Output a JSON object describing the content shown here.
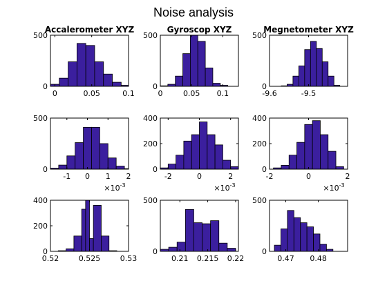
{
  "title": "Noise analysis",
  "chart_data": [
    {
      "type": "bar",
      "title": "Accalerometer XYZ",
      "multiplier": "",
      "xlim": [
        -0.006,
        0.1
      ],
      "ylim": [
        0,
        500
      ],
      "bins": [
        [
          -0.006,
          0.006,
          20
        ],
        [
          0.006,
          0.018,
          80
        ],
        [
          0.018,
          0.03,
          240
        ],
        [
          0.03,
          0.042,
          420
        ],
        [
          0.042,
          0.054,
          400
        ],
        [
          0.054,
          0.066,
          240
        ],
        [
          0.066,
          0.078,
          120
        ],
        [
          0.078,
          0.09,
          40
        ],
        [
          0.09,
          0.102,
          10
        ]
      ],
      "xticks": [
        0,
        0.05,
        0.1
      ],
      "xtick_labels": [
        "0",
        "0.05",
        "0.1"
      ],
      "yticks": [
        0,
        500
      ],
      "ytick_labels": [
        "0",
        "500"
      ]
    },
    {
      "type": "bar",
      "title": "Gyroscop XYZ",
      "multiplier": "",
      "xlim": [
        0,
        0.125
      ],
      "ylim": [
        0,
        500
      ],
      "bins": [
        [
          0.0,
          0.012,
          5
        ],
        [
          0.012,
          0.024,
          20
        ],
        [
          0.024,
          0.036,
          100
        ],
        [
          0.036,
          0.048,
          320
        ],
        [
          0.048,
          0.06,
          500
        ],
        [
          0.06,
          0.072,
          440
        ],
        [
          0.072,
          0.084,
          180
        ],
        [
          0.084,
          0.096,
          30
        ],
        [
          0.096,
          0.108,
          10
        ]
      ],
      "xticks": [
        0,
        0.05,
        0.1
      ],
      "xtick_labels": [
        "0",
        "0.05",
        "0.1"
      ],
      "yticks": [
        0,
        500
      ],
      "ytick_labels": [
        "0",
        "500"
      ]
    },
    {
      "type": "bar",
      "title": "Megnetometer XYZ",
      "multiplier": "",
      "xlim": [
        -9.6,
        -9.4
      ],
      "ylim": [
        0,
        500
      ],
      "bins": [
        [
          -9.57,
          -9.555,
          5
        ],
        [
          -9.555,
          -9.54,
          20
        ],
        [
          -9.54,
          -9.525,
          100
        ],
        [
          -9.525,
          -9.51,
          200
        ],
        [
          -9.51,
          -9.495,
          360
        ],
        [
          -9.495,
          -9.48,
          440
        ],
        [
          -9.48,
          -9.465,
          370
        ],
        [
          -9.465,
          -9.45,
          240
        ],
        [
          -9.45,
          -9.435,
          100
        ],
        [
          -9.435,
          -9.42,
          10
        ]
      ],
      "xticks": [
        -9.6,
        -9.5
      ],
      "xtick_labels": [
        "-9.6",
        "-9.5"
      ],
      "yticks": [
        0,
        500
      ],
      "ytick_labels": [
        "0",
        "500"
      ]
    },
    {
      "type": "bar",
      "title": "",
      "multiplier": "×10",
      "multiplier_exp": "-3",
      "xlim": [
        -0.0018,
        0.002
      ],
      "ylim": [
        0,
        500
      ],
      "bins": [
        [
          -0.0018,
          -0.0014,
          10
        ],
        [
          -0.0014,
          -0.001,
          40
        ],
        [
          -0.001,
          -0.0006,
          130
        ],
        [
          -0.0006,
          -0.0002,
          260
        ],
        [
          -0.0002,
          0.0002,
          410
        ],
        [
          0.0002,
          0.0006,
          410
        ],
        [
          0.0006,
          0.001,
          250
        ],
        [
          0.001,
          0.0014,
          110
        ],
        [
          0.0014,
          0.0018,
          30
        ],
        [
          0.0018,
          0.0022,
          5
        ]
      ],
      "xticks": [
        -0.001,
        0,
        0.001,
        0.002
      ],
      "xtick_labels": [
        "-1",
        "0",
        "1",
        "2"
      ],
      "yticks": [
        0,
        500
      ],
      "ytick_labels": [
        "0",
        "500"
      ]
    },
    {
      "type": "bar",
      "title": "",
      "multiplier": "×10",
      "multiplier_exp": "-3",
      "xlim": [
        -0.0025,
        0.0025
      ],
      "ylim": [
        0,
        400
      ],
      "bins": [
        [
          -0.0025,
          -0.002,
          10
        ],
        [
          -0.002,
          -0.0015,
          40
        ],
        [
          -0.0015,
          -0.001,
          110
        ],
        [
          -0.001,
          -0.0005,
          220
        ],
        [
          -0.0005,
          0.0,
          270
        ],
        [
          0.0,
          0.0005,
          370
        ],
        [
          0.0005,
          0.001,
          270
        ],
        [
          0.001,
          0.0015,
          190
        ],
        [
          0.0015,
          0.002,
          70
        ],
        [
          0.002,
          0.0025,
          20
        ]
      ],
      "xticks": [
        -0.002,
        0,
        0.002
      ],
      "xtick_labels": [
        "-2",
        "0",
        "2"
      ],
      "yticks": [
        0,
        200,
        400
      ],
      "ytick_labels": [
        "0",
        "200",
        "400"
      ]
    },
    {
      "type": "bar",
      "title": "",
      "multiplier": "×10",
      "multiplier_exp": "-3",
      "xlim": [
        -0.002,
        0.002
      ],
      "ylim": [
        0,
        400
      ],
      "bins": [
        [
          -0.0018,
          -0.0014,
          10
        ],
        [
          -0.0014,
          -0.001,
          30
        ],
        [
          -0.001,
          -0.0006,
          110
        ],
        [
          -0.0006,
          -0.0002,
          210
        ],
        [
          -0.0002,
          0.0002,
          350
        ],
        [
          0.0002,
          0.0006,
          380
        ],
        [
          0.0006,
          0.001,
          270
        ],
        [
          0.001,
          0.0014,
          140
        ],
        [
          0.0014,
          0.0018,
          20
        ]
      ],
      "xticks": [
        -0.002,
        0,
        0.002
      ],
      "xtick_labels": [
        "-2",
        "0",
        "2"
      ],
      "yticks": [
        0,
        200,
        400
      ],
      "ytick_labels": [
        "0",
        "200",
        "400"
      ]
    },
    {
      "type": "bar",
      "title": "",
      "multiplier": "",
      "xlim": [
        0.52,
        0.53
      ],
      "ylim": [
        0,
        400
      ],
      "bins": [
        [
          0.521,
          0.522,
          5
        ],
        [
          0.522,
          0.523,
          20
        ],
        [
          0.523,
          0.524,
          120
        ],
        [
          0.524,
          0.5245,
          330
        ],
        [
          0.5245,
          0.525,
          400
        ],
        [
          0.525,
          0.5255,
          100
        ],
        [
          0.5255,
          0.5265,
          360
        ],
        [
          0.5265,
          0.5275,
          120
        ],
        [
          0.5275,
          0.5285,
          5
        ]
      ],
      "xticks": [
        0.52,
        0.525,
        0.53
      ],
      "xtick_labels": [
        "0.52",
        "0.525",
        "0.53"
      ],
      "yticks": [
        0,
        200,
        400
      ],
      "ytick_labels": [
        "0",
        "200",
        "400"
      ]
    },
    {
      "type": "bar",
      "title": "",
      "multiplier": "",
      "xlim": [
        0.2065,
        0.2205
      ],
      "ylim": [
        0,
        500
      ],
      "bins": [
        [
          0.2065,
          0.208,
          20
        ],
        [
          0.208,
          0.2095,
          40
        ],
        [
          0.2095,
          0.211,
          90
        ],
        [
          0.211,
          0.2125,
          410
        ],
        [
          0.2125,
          0.214,
          280
        ],
        [
          0.214,
          0.2155,
          270
        ],
        [
          0.2155,
          0.217,
          300
        ],
        [
          0.217,
          0.2185,
          80
        ],
        [
          0.2185,
          0.22,
          30
        ]
      ],
      "xticks": [
        0.21,
        0.215,
        0.22
      ],
      "xtick_labels": [
        "0.21",
        "0.215",
        "0.22"
      ],
      "yticks": [
        0,
        500
      ],
      "ytick_labels": [
        "0",
        "500"
      ]
    },
    {
      "type": "bar",
      "title": "",
      "multiplier": "",
      "xlim": [
        0.465,
        0.489
      ],
      "ylim": [
        0,
        500
      ],
      "bins": [
        [
          0.4665,
          0.4685,
          60
        ],
        [
          0.4685,
          0.4705,
          220
        ],
        [
          0.4705,
          0.4725,
          400
        ],
        [
          0.4725,
          0.4745,
          330
        ],
        [
          0.4745,
          0.4765,
          280
        ],
        [
          0.4765,
          0.4785,
          240
        ],
        [
          0.4785,
          0.4805,
          170
        ],
        [
          0.4805,
          0.4825,
          70
        ],
        [
          0.4825,
          0.4845,
          20
        ]
      ],
      "xticks": [
        0.47,
        0.48
      ],
      "xtick_labels": [
        "0.47",
        "0.48"
      ],
      "yticks": [
        0,
        500
      ],
      "ytick_labels": [
        "0",
        "500"
      ]
    }
  ]
}
